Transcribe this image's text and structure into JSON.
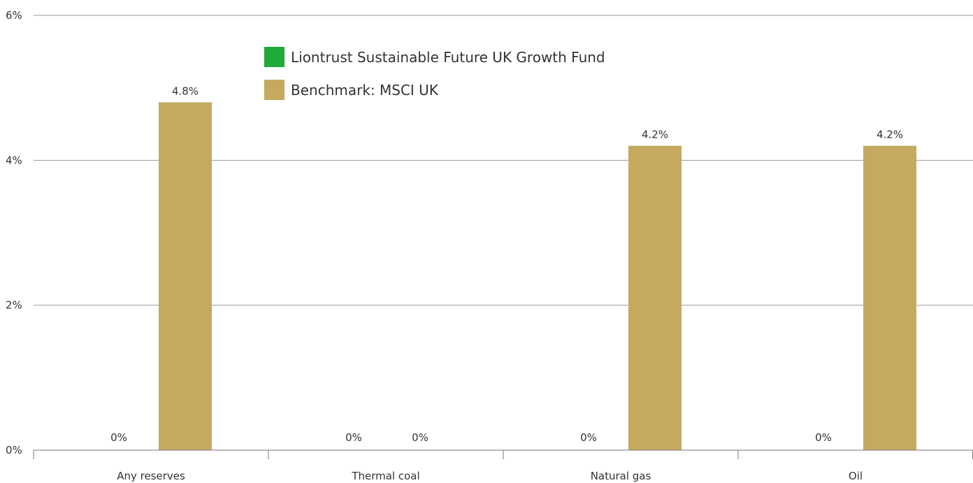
{
  "chart_data": {
    "type": "bar",
    "title": "",
    "xlabel": "",
    "ylabel": "",
    "categories": [
      "Any reserves",
      "Thermal coal",
      "Natural gas",
      "Oil"
    ],
    "series": [
      {
        "name": "Liontrust Sustainable Future UK Growth Fund",
        "color": "#1faa3a",
        "values": [
          0,
          0,
          0,
          0
        ],
        "labels": [
          "0%",
          "0%",
          "0%",
          "0%"
        ]
      },
      {
        "name": "Benchmark: MSCI UK",
        "color": "#c4a95f",
        "values": [
          4.8,
          0,
          4.2,
          4.2
        ],
        "labels": [
          "4.8%",
          "0%",
          "4.2%",
          "4.2%"
        ]
      }
    ],
    "ylim": [
      0,
      6
    ],
    "yticks": [
      0,
      2,
      4,
      6
    ],
    "ytick_labels": [
      "0%",
      "2%",
      "4%",
      "6%"
    ],
    "grid": true,
    "legend_position": "top-center"
  }
}
